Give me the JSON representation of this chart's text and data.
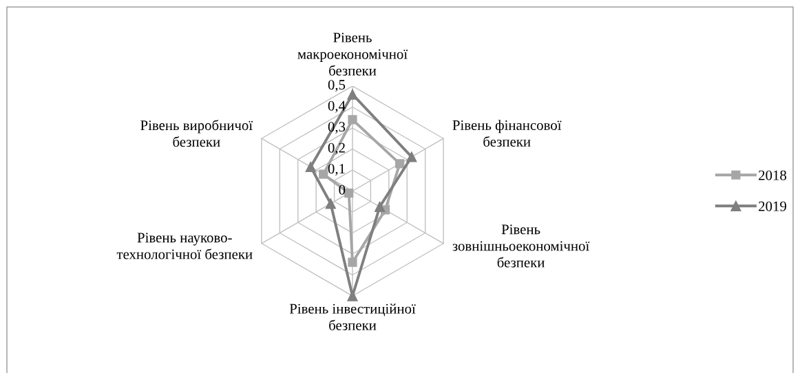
{
  "chart_data": {
    "type": "radar",
    "categories": [
      "Рівень\nмакроекономічної\nбезпеки",
      "Рівень фінансової\nбезпеки",
      "Рівень\nзовнішньоекономічної\nбезпеки",
      "Рівень інвестиційної\nбезпеки",
      "Рівень науково-\nтехнологічної безпеки",
      "Рівень виробничої\nбезпеки"
    ],
    "series": [
      {
        "name": "2018",
        "color": "#a6a6a6",
        "marker": "square",
        "values": [
          0.34,
          0.26,
          0.18,
          0.34,
          0.02,
          0.16
        ]
      },
      {
        "name": "2019",
        "color": "#7f7f7f",
        "marker": "triangle",
        "values": [
          0.46,
          0.325,
          0.15,
          0.5,
          0.12,
          0.23
        ]
      }
    ],
    "ylim": [
      0,
      0.5
    ],
    "yticks": [
      0,
      {
        "value": 0.1,
        "label": "0,1"
      },
      {
        "value": 0.2,
        "label": "0,2"
      },
      {
        "value": 0.3,
        "label": "0,3"
      },
      {
        "value": 0.4,
        "label": "0,4"
      },
      {
        "value": 0.5,
        "label": "0,5"
      }
    ],
    "grid": true,
    "legend": "right",
    "line_style": "solid"
  }
}
